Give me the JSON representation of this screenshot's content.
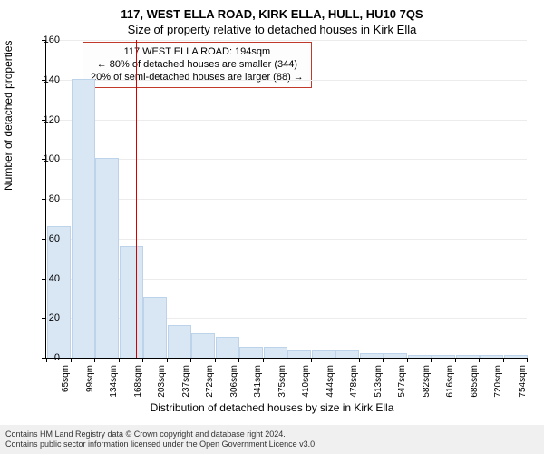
{
  "title_main": "117, WEST ELLA ROAD, KIRK ELLA, HULL, HU10 7QS",
  "title_sub": "Size of property relative to detached houses in Kirk Ella",
  "y_label": "Number of detached properties",
  "x_caption": "Distribution of detached houses by size in Kirk Ella",
  "legend": {
    "line1": "117 WEST ELLA ROAD: 194sqm",
    "line2": "← 80% of detached houses are smaller (344)",
    "line3": "20% of semi-detached houses are larger (88) →"
  },
  "footer": {
    "line1": "Contains HM Land Registry data © Crown copyright and database right 2024.",
    "line2": "Contains public sector information licensed under the Open Government Licence v3.0."
  },
  "chart": {
    "type": "histogram",
    "ylim": [
      0,
      160
    ],
    "ytick_step": 20,
    "bar_color": "#d9e7f5",
    "bar_border": "#bcd3ea",
    "grid_color": "#ececec",
    "median_color": "#d40000",
    "median_xindex": 4,
    "background": "#ffffff",
    "x_labels": [
      "65sqm",
      "99sqm",
      "134sqm",
      "168sqm",
      "203sqm",
      "237sqm",
      "272sqm",
      "306sqm",
      "341sqm",
      "375sqm",
      "410sqm",
      "444sqm",
      "478sqm",
      "513sqm",
      "547sqm",
      "582sqm",
      "616sqm",
      "685sqm",
      "720sqm",
      "754sqm"
    ],
    "bar_values": [
      66,
      140,
      100,
      56,
      30,
      16,
      12,
      10,
      5,
      5,
      3,
      3,
      3,
      2,
      2,
      1,
      1,
      1,
      1,
      1
    ]
  }
}
